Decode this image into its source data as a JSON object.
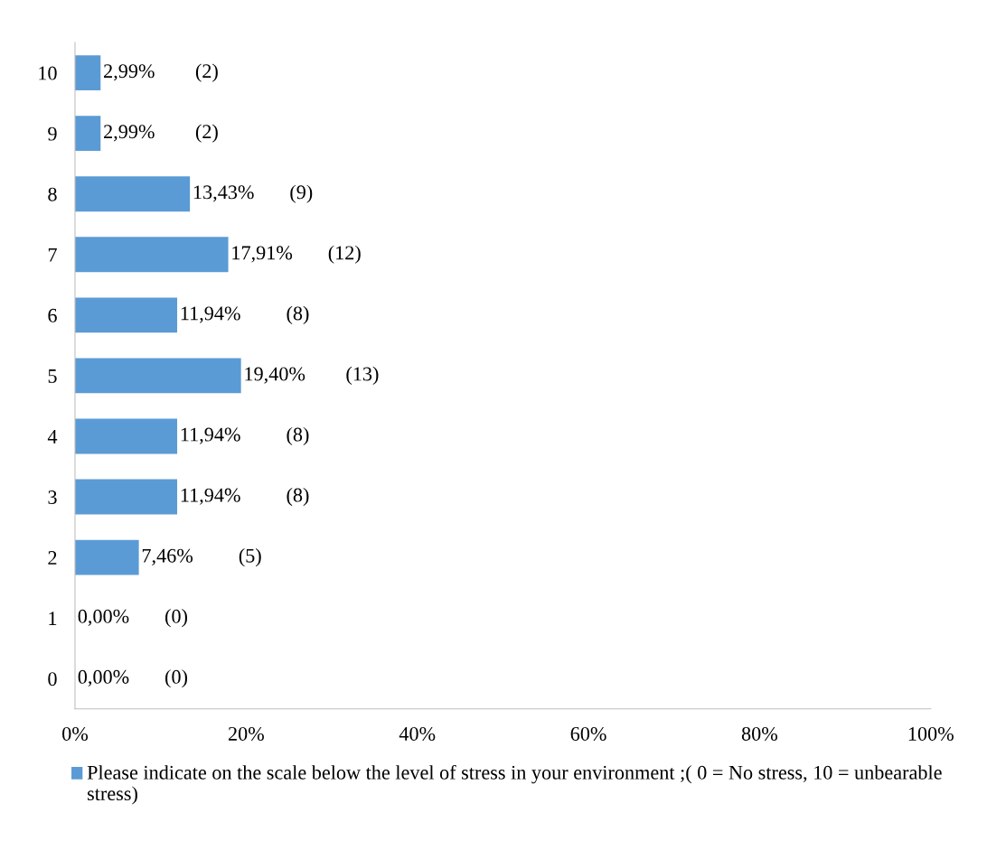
{
  "chart_data": {
    "type": "bar",
    "orientation": "horizontal",
    "categories": [
      "10",
      "9",
      "8",
      "7",
      "6",
      "5",
      "4",
      "3",
      "2",
      "1",
      "0"
    ],
    "series": [
      {
        "name": "Please indicate on the scale below the level of stress in your environment ;( 0 = No stress, 10 = unbearable stress)",
        "color": "#5b9bd5",
        "values": [
          2.99,
          2.99,
          13.43,
          17.91,
          11.94,
          19.4,
          11.94,
          11.94,
          7.46,
          0,
          0
        ],
        "value_labels": [
          "2,99%        (2)",
          "2,99%        (2)",
          "13,43%       (9)",
          "17,91%       (12)",
          "11,94%         (8)",
          "19,40%        (13)",
          "11,94%         (8)",
          "11,94%         (8)",
          "7,46%         (5)",
          "0,00%       (0)",
          "0,00%       (0)"
        ]
      }
    ],
    "xlim": [
      0,
      100
    ],
    "xticks": [
      {
        "value": 0,
        "label": "0%"
      },
      {
        "value": 20,
        "label": "20%"
      },
      {
        "value": 40,
        "label": "40%"
      },
      {
        "value": 60,
        "label": "60%"
      },
      {
        "value": 80,
        "label": "80%"
      },
      {
        "value": 100,
        "label": "100%"
      }
    ],
    "grid": false,
    "legend": "bottom"
  }
}
